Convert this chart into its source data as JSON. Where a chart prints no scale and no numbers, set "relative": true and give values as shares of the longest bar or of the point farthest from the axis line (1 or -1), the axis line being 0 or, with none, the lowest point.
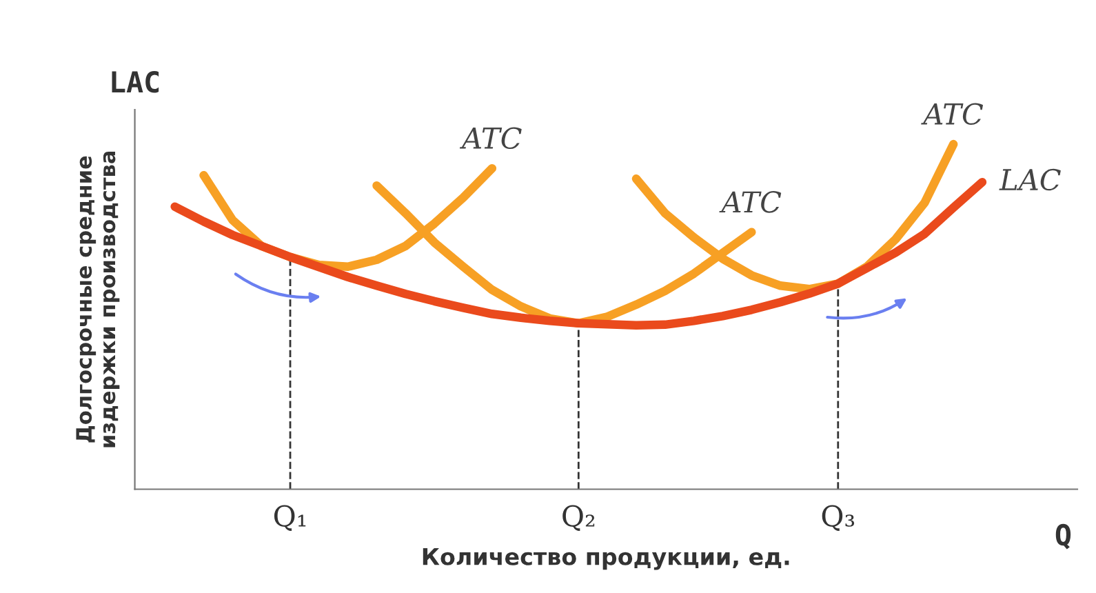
{
  "chart_data": {
    "type": "line",
    "relative": true,
    "xlabel": "Количество продукции, ед.",
    "ylabel": "Долгосрочные средние\nиздержки производства",
    "annotations": [
      "LAC",
      "Q"
    ],
    "categories": [
      null,
      null,
      null,
      null,
      "Q₁",
      null,
      null,
      null,
      null,
      null,
      null,
      null,
      null,
      null,
      "Q₂",
      null,
      null,
      null,
      null,
      null,
      null,
      null,
      null,
      "Q₃",
      null,
      null,
      null,
      null,
      null,
      null
    ],
    "ref_lines": [
      {
        "axis": "x",
        "value": "Q₁",
        "line_style": "dashed",
        "color": "#333333"
      },
      {
        "axis": "x",
        "value": "Q₂",
        "line_style": "dashed",
        "color": "#333333"
      },
      {
        "axis": "x",
        "value": "Q₃",
        "line_style": "dashed",
        "color": "#333333"
      }
    ],
    "grid": false,
    "legend": false,
    "marker": "none",
    "line_style": "solid",
    "series": [
      {
        "name": "ATC",
        "color": "#f7a024",
        "values": [
          null,
          0.91,
          0.78,
          0.705,
          0.673,
          0.65,
          0.645,
          0.665,
          0.705,
          0.77,
          0.845,
          0.93,
          null,
          null,
          null,
          null,
          null,
          null,
          null,
          null,
          null,
          null,
          null,
          null,
          null,
          null,
          null,
          null,
          null,
          null
        ]
      },
      {
        "name": "ATC",
        "color": "#f7a024",
        "values": [
          null,
          null,
          null,
          null,
          null,
          null,
          null,
          0.88,
          0.8,
          0.715,
          0.645,
          0.578,
          0.53,
          0.495,
          0.481,
          0.5,
          0.535,
          0.575,
          0.625,
          0.685,
          0.745,
          null,
          null,
          null,
          null,
          null,
          null,
          null,
          null,
          null
        ]
      },
      {
        "name": "ATC",
        "color": "#f7a024",
        "values": [
          null,
          null,
          null,
          null,
          null,
          null,
          null,
          null,
          null,
          null,
          null,
          null,
          null,
          null,
          null,
          null,
          0.9,
          0.8,
          0.73,
          0.668,
          0.62,
          0.59,
          0.58,
          0.596,
          0.645,
          0.725,
          0.83,
          1,
          null,
          null
        ]
      },
      {
        "name": "LAC",
        "color": "#ea4a1c",
        "values": [
          0.819,
          0.776,
          0.737,
          0.705,
          0.673,
          0.644,
          0.615,
          0.59,
          0.566,
          0.545,
          0.526,
          0.508,
          0.497,
          0.488,
          0.481,
          0.478,
          0.475,
          0.477,
          0.488,
          0.502,
          0.52,
          0.542,
          0.567,
          0.596,
          0.641,
          0.686,
          0.74,
          0.816,
          0.89,
          null
        ]
      }
    ]
  }
}
